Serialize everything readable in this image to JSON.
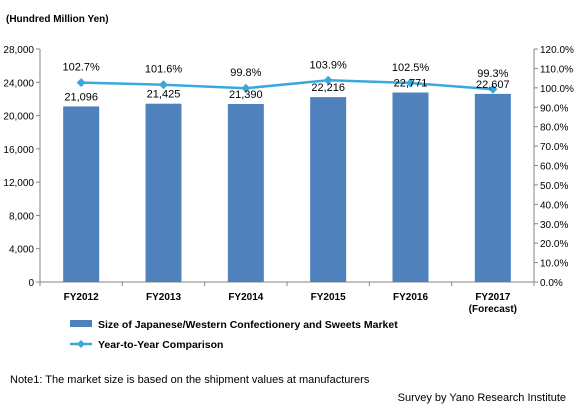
{
  "unit_label": "(Hundred Million Yen)",
  "note": "Note1: The market size is based on the shipment values at manufacturers",
  "source": "Survey by Yano Research Institute",
  "chart_data": {
    "type": "bar",
    "categories": [
      "FY2012",
      "FY2013",
      "FY2014",
      "FY2015",
      "FY2016",
      "FY2017"
    ],
    "category_sublabels": [
      "",
      "",
      "",
      "",
      "",
      "(Forecast)"
    ],
    "series": [
      {
        "name": "Size of Japanese/Western Confectionery and Sweets Market",
        "type": "bar",
        "axis": "left",
        "color": "#4f81bd",
        "values": [
          21096,
          21425,
          21390,
          22216,
          22771,
          22607
        ],
        "labels": [
          "21,096",
          "21,425",
          "21,390",
          "22,216",
          "22,771",
          "22,607"
        ]
      },
      {
        "name": "Year-to-Year Comparison",
        "type": "line",
        "axis": "right",
        "color": "#39a9dc",
        "values": [
          102.7,
          101.6,
          99.8,
          103.9,
          102.5,
          99.3
        ],
        "labels": [
          "102.7%",
          "101.6%",
          "99.8%",
          "103.9%",
          "102.5%",
          "99.3%"
        ]
      }
    ],
    "y_left": {
      "min": 0,
      "max": 28000,
      "step": 4000,
      "ticks": [
        "0",
        "4,000",
        "8,000",
        "12,000",
        "16,000",
        "20,000",
        "24,000",
        "28,000"
      ]
    },
    "y_right": {
      "min": 0,
      "max": 120,
      "step": 10,
      "ticks": [
        "0.0%",
        "10.0%",
        "20.0%",
        "30.0%",
        "40.0%",
        "50.0%",
        "60.0%",
        "70.0%",
        "80.0%",
        "90.0%",
        "100.0%",
        "110.0%",
        "120.0%"
      ]
    },
    "grid": false,
    "legend_position": "bottom-left"
  }
}
